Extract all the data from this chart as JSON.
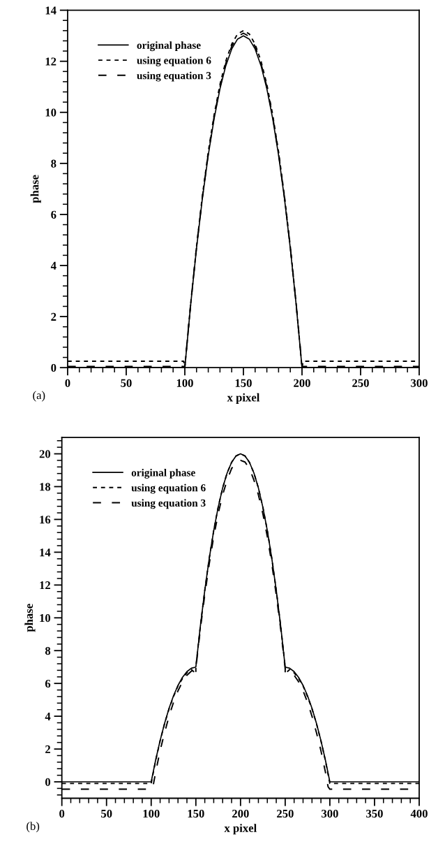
{
  "chart_data": [
    {
      "type": "line",
      "xlabel": "x pixel",
      "ylabel": "phase",
      "annotations": [
        "(a)"
      ],
      "xlim": [
        0,
        300
      ],
      "ylim": [
        0,
        14
      ],
      "xticks": [
        0,
        50,
        100,
        150,
        200,
        250,
        300
      ],
      "yticks": [
        0,
        2,
        4,
        6,
        8,
        10,
        12,
        14
      ],
      "legend": "top left",
      "grid": false,
      "series": [
        {
          "name": "original phase",
          "color": "#000000",
          "line_style": "solid",
          "x": [
            0,
            100,
            105,
            110,
            115,
            120,
            125,
            130,
            135,
            140,
            145,
            150,
            155,
            160,
            165,
            170,
            175,
            180,
            185,
            190,
            195,
            200,
            300
          ],
          "values": [
            0,
            0,
            2.47,
            4.68,
            6.63,
            8.32,
            9.75,
            10.92,
            11.83,
            12.48,
            12.87,
            13,
            12.87,
            12.48,
            11.83,
            10.92,
            9.75,
            8.32,
            6.63,
            4.68,
            2.47,
            0,
            0
          ]
        },
        {
          "name": "using equation 6",
          "color": "#000000",
          "line_style": "dashed",
          "x": [
            0,
            99,
            100,
            105,
            110,
            115,
            120,
            125,
            130,
            135,
            140,
            145,
            150,
            155,
            160,
            165,
            170,
            175,
            180,
            185,
            190,
            195,
            200,
            201,
            300
          ],
          "values": [
            0.25,
            0.25,
            0,
            2.51,
            4.75,
            6.73,
            8.45,
            9.9,
            11.09,
            12.01,
            12.67,
            13.07,
            13.2,
            13.07,
            12.67,
            12.01,
            11.09,
            9.9,
            8.45,
            6.73,
            4.75,
            2.51,
            0,
            0.25,
            0.25
          ]
        },
        {
          "name": "using equation 3",
          "color": "#000000",
          "line_style": "dashed",
          "x": [
            0,
            100,
            105,
            110,
            115,
            120,
            125,
            130,
            135,
            140,
            145,
            150,
            155,
            160,
            165,
            170,
            175,
            180,
            185,
            190,
            195,
            200,
            300
          ],
          "values": [
            0.05,
            0.05,
            2.49,
            4.72,
            6.68,
            8.38,
            9.83,
            11,
            11.92,
            12.58,
            12.97,
            13.1,
            12.97,
            12.58,
            11.92,
            11,
            9.83,
            8.38,
            6.68,
            4.72,
            2.49,
            0.05,
            0.05
          ]
        }
      ]
    },
    {
      "type": "line",
      "xlabel": "x pixel",
      "ylabel": "phase",
      "annotations": [
        "(b)"
      ],
      "xlim": [
        0,
        400
      ],
      "ylim": [
        -1,
        21
      ],
      "xticks": [
        0,
        50,
        100,
        150,
        200,
        250,
        300,
        350,
        400
      ],
      "yticks": [
        0,
        2,
        4,
        6,
        8,
        10,
        12,
        14,
        16,
        18,
        20
      ],
      "legend": "top left",
      "grid": false,
      "series": [
        {
          "name": "original phase",
          "color": "#000000",
          "line_style": "solid",
          "x": [
            0,
            100,
            105,
            110,
            115,
            120,
            125,
            130,
            135,
            140,
            145,
            150,
            155,
            160,
            165,
            170,
            175,
            180,
            185,
            190,
            195,
            200,
            205,
            210,
            215,
            220,
            225,
            230,
            235,
            240,
            245,
            250,
            255,
            260,
            265,
            270,
            275,
            280,
            285,
            290,
            295,
            300,
            400
          ],
          "values": [
            0,
            0,
            1.33,
            2.52,
            3.57,
            4.48,
            5.25,
            5.88,
            6.37,
            6.72,
            6.93,
            7,
            9.47,
            11.68,
            13.63,
            15.32,
            16.75,
            17.92,
            18.83,
            19.48,
            19.87,
            20,
            19.87,
            19.48,
            18.83,
            17.92,
            16.75,
            15.32,
            13.63,
            11.68,
            9.47,
            7,
            6.93,
            6.72,
            6.37,
            5.88,
            5.25,
            4.48,
            3.57,
            2.52,
            1.33,
            0,
            0
          ]
        },
        {
          "name": "using equation 6",
          "color": "#000000",
          "line_style": "dashed",
          "x": [
            0,
            100,
            105,
            110,
            115,
            120,
            125,
            130,
            135,
            140,
            145,
            150,
            150,
            155,
            160,
            165,
            170,
            175,
            180,
            185,
            190,
            195,
            200,
            205,
            210,
            215,
            220,
            225,
            230,
            235,
            240,
            245,
            250,
            250,
            255,
            260,
            265,
            270,
            275,
            280,
            285,
            290,
            295,
            300,
            400
          ],
          "values": [
            -0.1,
            -0.1,
            1.3,
            2.5,
            3.55,
            4.45,
            5.2,
            5.85,
            6.3,
            6.65,
            6.85,
            6.6,
            7,
            9.47,
            11.68,
            13.63,
            15.32,
            16.75,
            17.92,
            18.83,
            19.48,
            19.87,
            20,
            19.87,
            19.48,
            18.83,
            17.92,
            16.75,
            15.32,
            13.63,
            11.68,
            9.47,
            7,
            6.6,
            6.85,
            6.65,
            6.3,
            5.85,
            5.2,
            4.45,
            3.55,
            2.5,
            1.3,
            -0.1,
            -0.1
          ]
        },
        {
          "name": "using equation 3",
          "color": "#000000",
          "line_style": "dashed",
          "x": [
            0,
            100,
            102,
            105,
            110,
            115,
            120,
            125,
            130,
            135,
            140,
            145,
            150,
            155,
            160,
            165,
            170,
            175,
            180,
            185,
            190,
            195,
            200,
            205,
            210,
            215,
            220,
            225,
            230,
            235,
            240,
            245,
            250,
            255,
            260,
            265,
            270,
            275,
            280,
            285,
            290,
            295,
            298,
            300,
            400
          ],
          "values": [
            -0.45,
            -0.45,
            -0.3,
            0.6,
            1.9,
            3,
            4,
            4.85,
            5.55,
            6.1,
            6.5,
            6.75,
            6.9,
            9.3,
            11.4,
            13.3,
            14.95,
            16.35,
            17.5,
            18.4,
            19.1,
            19.5,
            19.6,
            19.5,
            19.1,
            18.4,
            17.5,
            16.35,
            14.95,
            13.3,
            11.4,
            9.3,
            6.9,
            6.75,
            6.5,
            6.1,
            5.55,
            4.85,
            4,
            3,
            1.9,
            0.6,
            -0.3,
            -0.45,
            -0.45
          ]
        }
      ]
    }
  ]
}
